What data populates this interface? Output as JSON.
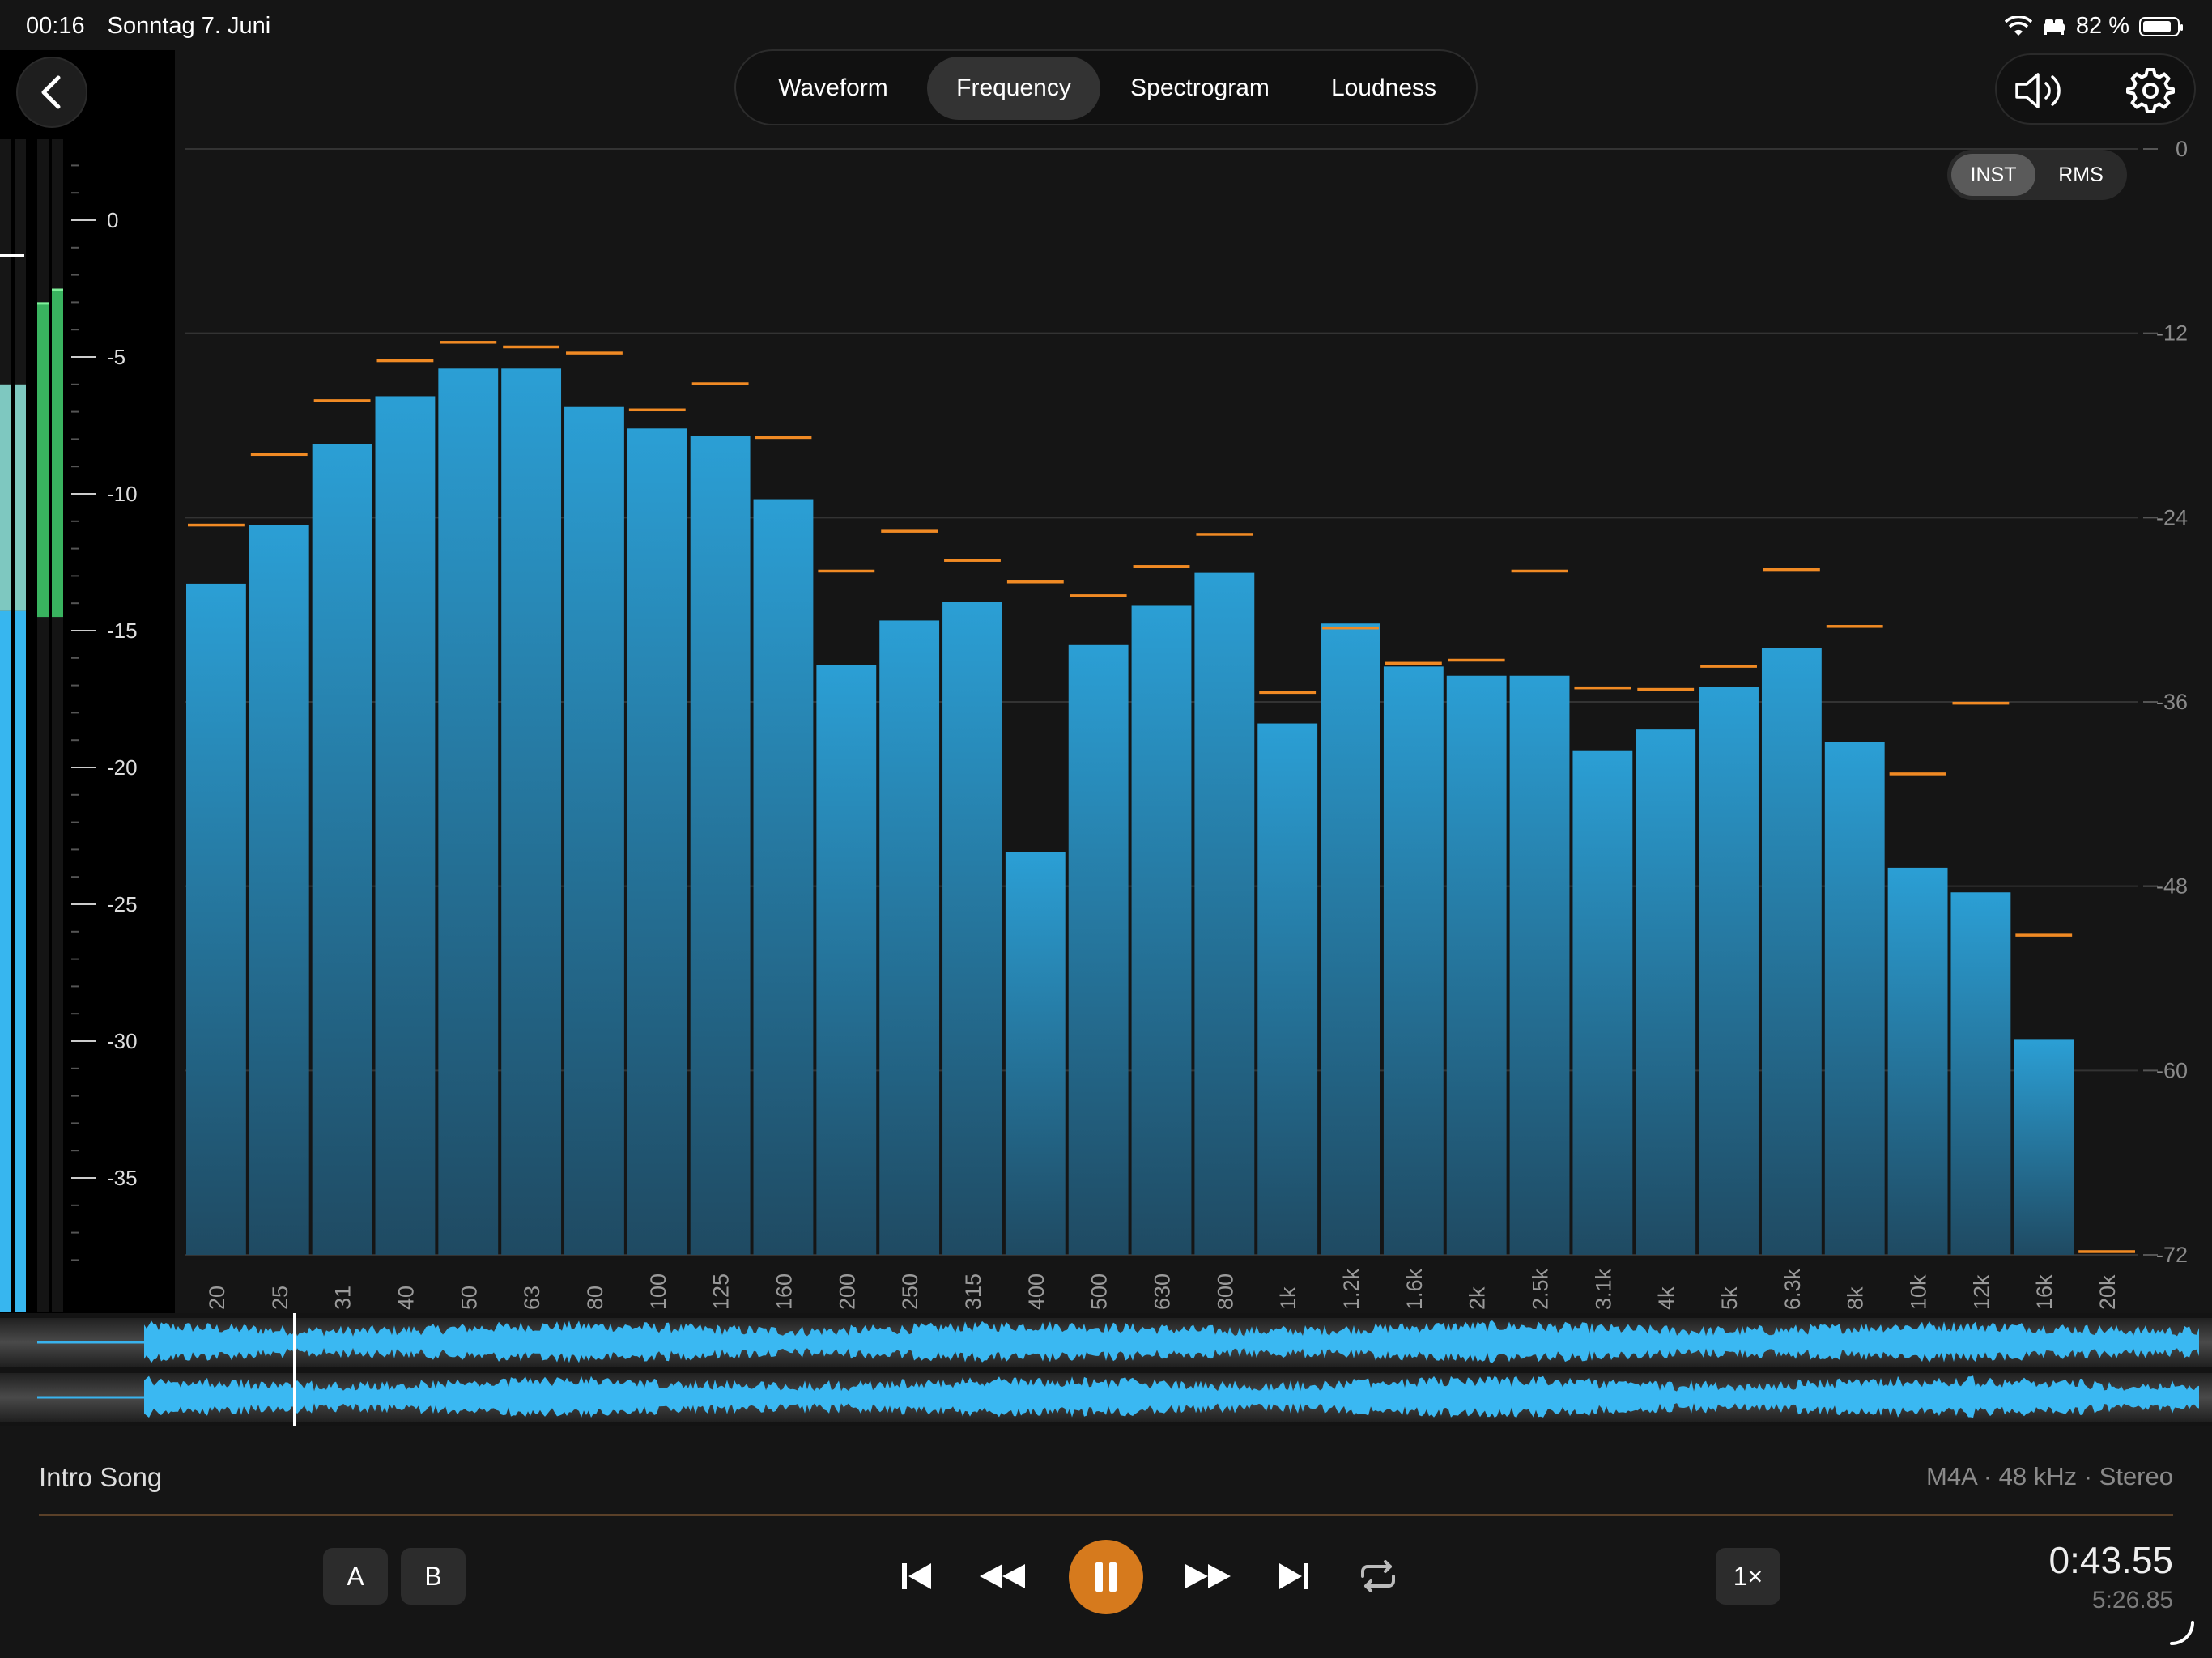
{
  "status_bar": {
    "time": "00:16",
    "date": "Sonntag 7. Juni",
    "battery": "82 %"
  },
  "tabs": [
    {
      "label": "Waveform",
      "active": false
    },
    {
      "label": "Frequency",
      "active": true
    },
    {
      "label": "Spectrogram",
      "active": false
    },
    {
      "label": "Loudness",
      "active": false
    }
  ],
  "toggle": {
    "inst": "INST",
    "rms": "RMS",
    "selected": "INST"
  },
  "level_meter": {
    "ticks": [
      "0",
      "-5",
      "-10",
      "-15",
      "-20",
      "-25",
      "-30",
      "-35"
    ],
    "channels": [
      {
        "color": "#37b6ef",
        "fill_top_db": -6
      },
      {
        "color": "#3fcf6c",
        "fill_top_db": -2.5,
        "bottom_db": -14.5
      }
    ]
  },
  "chart_data": {
    "type": "bar",
    "ylim": [
      -72,
      0
    ],
    "y_ticks": [
      "0",
      "-12",
      "-24",
      "-36",
      "-48",
      "-60",
      "-72"
    ],
    "categories": [
      "20",
      "25",
      "31",
      "40",
      "50",
      "63",
      "80",
      "100",
      "125",
      "160",
      "200",
      "250",
      "315",
      "400",
      "500",
      "630",
      "800",
      "1k",
      "1.2k",
      "1.6k",
      "2k",
      "2.5k",
      "3.1k",
      "4k",
      "5k",
      "6.3k",
      "8k",
      "10k",
      "12k",
      "16k",
      "20k"
    ],
    "series": [
      {
        "values": [
          -28.3,
          -24.5,
          -19.2,
          -16.1,
          -14.3,
          -14.3,
          -16.8,
          -18.2,
          -18.7,
          -22.8,
          -33.6,
          -30.7,
          -29.5,
          -45.8,
          -32.3,
          -29.7,
          -27.6,
          -37.4,
          -30.9,
          -33.7,
          -34.3,
          -34.3,
          -39.2,
          -37.8,
          -35.0,
          -32.5,
          -38.6,
          -46.8,
          -48.4,
          -58.0,
          -72
        ]
      },
      {
        "values": [
          -24.5,
          -19.9,
          -16.4,
          -13.8,
          -12.6,
          -12.9,
          -13.3,
          -17.0,
          -15.3,
          -18.8,
          -27.5,
          -24.9,
          -26.8,
          -28.2,
          -29.1,
          -27.2,
          -25.1,
          -35.4,
          -31.2,
          -33.5,
          -33.3,
          -27.5,
          -35.1,
          -35.2,
          -33.7,
          -27.4,
          -31.1,
          -40.7,
          -36.1,
          -51.2,
          -71.8
        ]
      }
    ]
  },
  "colors": {
    "bar": "#2b9fd5",
    "peak": "#f08a24",
    "accent": "#d67a1d"
  },
  "track": {
    "title": "Intro Song",
    "format": "M4A · 48 kHz · Stereo",
    "position": "0:43.55",
    "duration": "5:26.85",
    "progress": 0.1333
  },
  "transport": {
    "a": "A",
    "b": "B",
    "speed": "1×"
  }
}
